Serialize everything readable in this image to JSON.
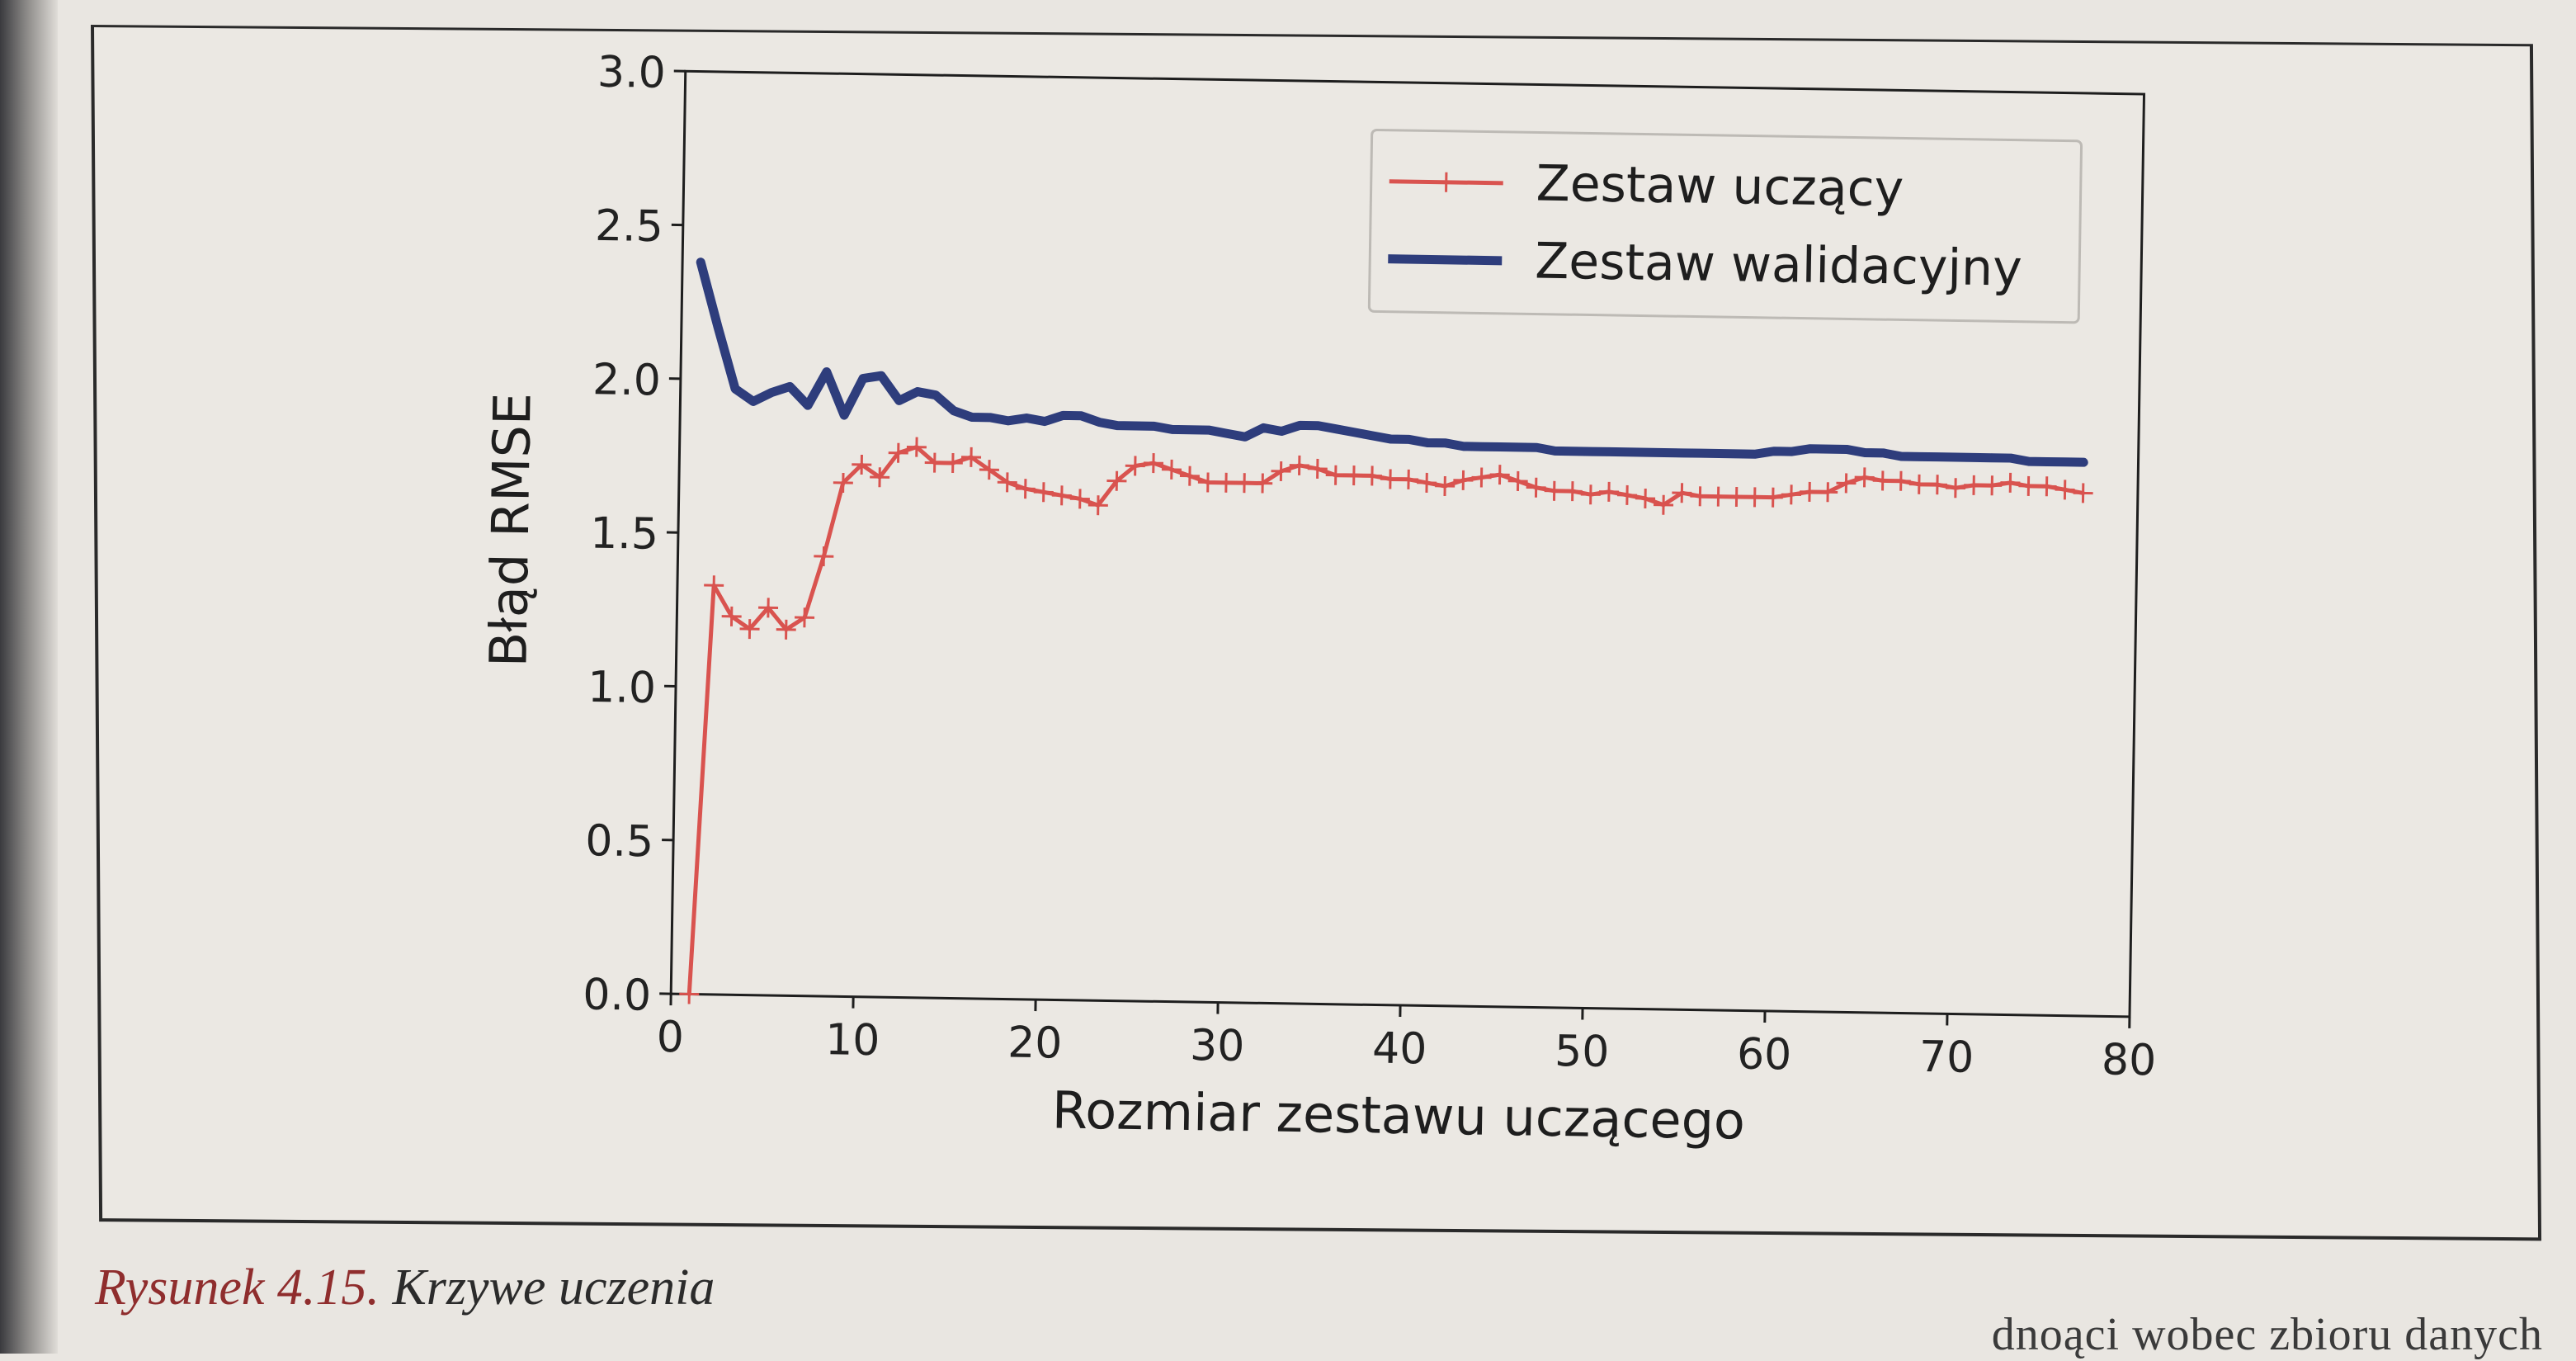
{
  "caption": {
    "figure_number": "Rysunek 4.15.",
    "figure_title": "Krzywe uczenia"
  },
  "partial_bottom_text": "dnoąci wobec zbioru danych",
  "chart_data": {
    "type": "line",
    "title": "",
    "xlabel": "Rozmiar zestawu uczącego",
    "ylabel": "Błąd RMSE",
    "xlim": [
      0,
      80
    ],
    "ylim": [
      0,
      3.0
    ],
    "xticks": [
      "0",
      "10",
      "20",
      "30",
      "40",
      "50",
      "60",
      "70",
      "80"
    ],
    "yticks": [
      "0.0",
      "0.5",
      "1.0",
      "1.5",
      "2.0",
      "2.5",
      "3.0"
    ],
    "grid": false,
    "legend_position": "top-right",
    "x": [
      1,
      2,
      3,
      4,
      5,
      6,
      7,
      8,
      9,
      10,
      11,
      12,
      13,
      14,
      15,
      16,
      17,
      18,
      19,
      20,
      21,
      22,
      23,
      24,
      25,
      26,
      27,
      28,
      29,
      30,
      31,
      32,
      33,
      34,
      35,
      36,
      37,
      38,
      39,
      40,
      41,
      42,
      43,
      44,
      45,
      46,
      47,
      48,
      49,
      50,
      51,
      52,
      53,
      54,
      55,
      56,
      57,
      58,
      59,
      60,
      61,
      62,
      63,
      64,
      65,
      66,
      67,
      68,
      69,
      70,
      71,
      72,
      73,
      74,
      75,
      76,
      77
    ],
    "series": [
      {
        "name": "Zestaw uczący",
        "color": "#d9534f",
        "marker": "plus",
        "values": [
          0.0,
          1.33,
          1.23,
          1.19,
          1.26,
          1.19,
          1.23,
          1.43,
          1.67,
          1.73,
          1.69,
          1.77,
          1.79,
          1.74,
          1.74,
          1.76,
          1.72,
          1.68,
          1.66,
          1.65,
          1.64,
          1.63,
          1.61,
          1.69,
          1.74,
          1.75,
          1.73,
          1.71,
          1.69,
          1.69,
          1.69,
          1.69,
          1.73,
          1.75,
          1.74,
          1.72,
          1.72,
          1.72,
          1.71,
          1.71,
          1.7,
          1.69,
          1.71,
          1.72,
          1.73,
          1.71,
          1.69,
          1.68,
          1.68,
          1.67,
          1.68,
          1.67,
          1.66,
          1.64,
          1.68,
          1.67,
          1.67,
          1.67,
          1.67,
          1.67,
          1.68,
          1.69,
          1.69,
          1.72,
          1.74,
          1.73,
          1.73,
          1.72,
          1.72,
          1.71,
          1.72,
          1.72,
          1.73,
          1.72,
          1.72,
          1.71,
          1.7
        ]
      },
      {
        "name": "Zestaw walidacyjny",
        "color": "#2e3d7c",
        "marker": "none",
        "values": [
          2.38,
          2.17,
          1.97,
          1.93,
          1.96,
          1.98,
          1.92,
          2.03,
          1.89,
          2.01,
          2.02,
          1.94,
          1.97,
          1.96,
          1.91,
          1.89,
          1.89,
          1.88,
          1.89,
          1.88,
          1.9,
          1.9,
          1.88,
          1.87,
          1.87,
          1.87,
          1.86,
          1.86,
          1.86,
          1.85,
          1.84,
          1.87,
          1.86,
          1.88,
          1.88,
          1.87,
          1.86,
          1.85,
          1.84,
          1.84,
          1.83,
          1.83,
          1.82,
          1.82,
          1.82,
          1.82,
          1.82,
          1.81,
          1.81,
          1.81,
          1.81,
          1.81,
          1.81,
          1.81,
          1.81,
          1.81,
          1.81,
          1.81,
          1.81,
          1.82,
          1.82,
          1.83,
          1.83,
          1.83,
          1.82,
          1.82,
          1.81,
          1.81,
          1.81,
          1.81,
          1.81,
          1.81,
          1.81,
          1.8,
          1.8,
          1.8,
          1.8
        ]
      }
    ]
  }
}
